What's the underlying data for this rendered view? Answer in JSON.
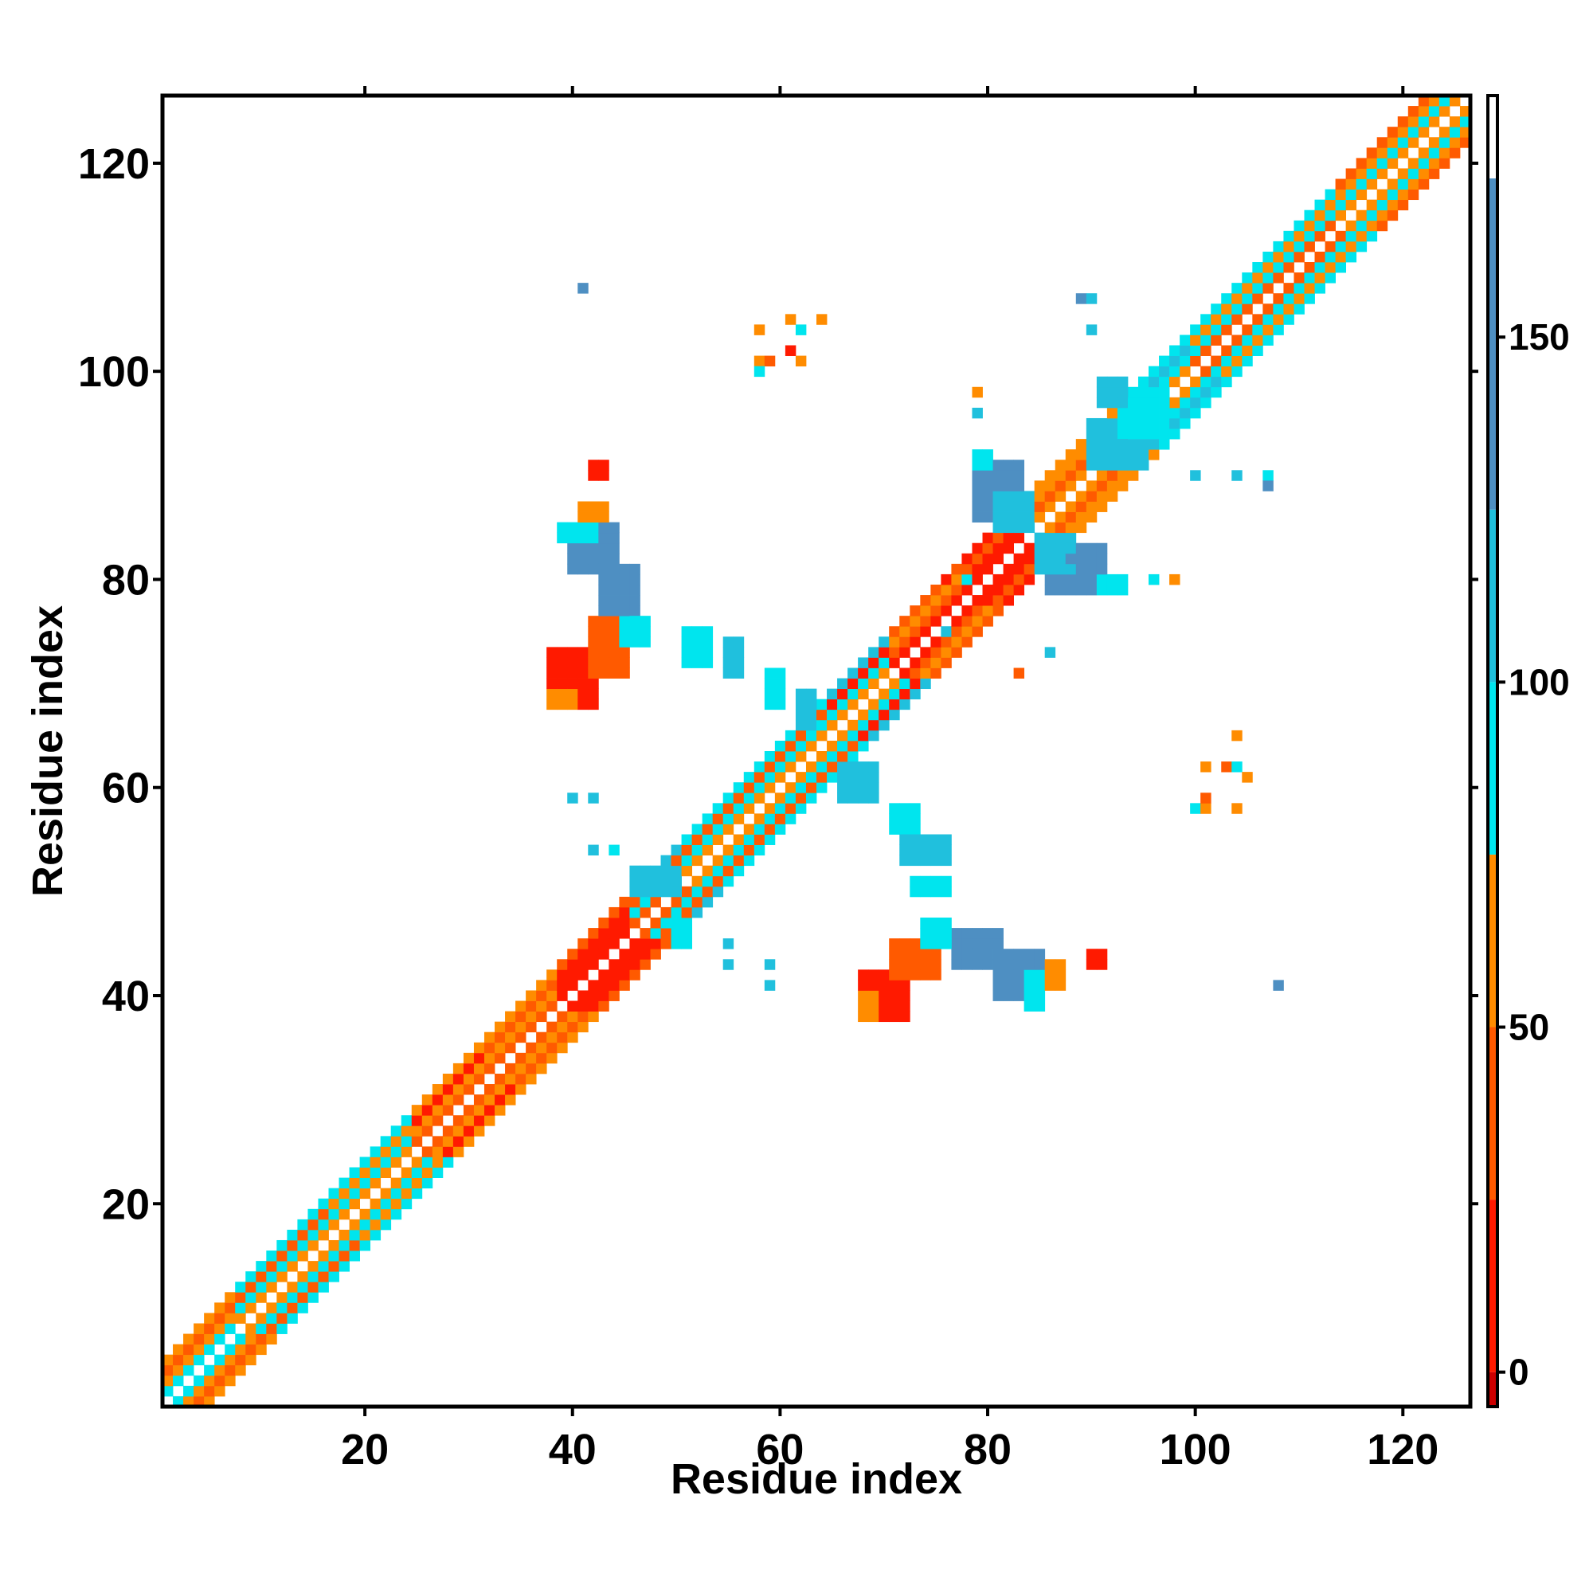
{
  "chart_data": {
    "type": "heatmap",
    "title": "",
    "xlabel": "Residue index",
    "ylabel": "Residue index",
    "xlim": [
      1,
      126
    ],
    "ylim": [
      1,
      126
    ],
    "xticks": [
      20,
      40,
      60,
      80,
      100,
      120
    ],
    "yticks": [
      20,
      40,
      60,
      80,
      100,
      120
    ],
    "grid": false,
    "colorbar": {
      "range": [
        -5,
        185
      ],
      "ticks": [
        0,
        50,
        100,
        150
      ],
      "bands": [
        {
          "from": -5,
          "to": 0,
          "color": "#cc0000"
        },
        {
          "from": 0,
          "to": 25,
          "color": "#ff1a00"
        },
        {
          "from": 25,
          "to": 50,
          "color": "#ff5a00"
        },
        {
          "from": 50,
          "to": 75,
          "color": "#ff8c00"
        },
        {
          "from": 75,
          "to": 100,
          "color": "#00e5ee"
        },
        {
          "from": 100,
          "to": 125,
          "color": "#20c0dd"
        },
        {
          "from": 125,
          "to": 173,
          "color": "#4e8fc2"
        },
        {
          "from": 173,
          "to": 185,
          "color": "#ffffff"
        }
      ]
    },
    "palette": {
      "1": "#ff1a00",
      "2": "#ff5a00",
      "3": "#ff8c00",
      "4": "#00e5ee",
      "5": "#20c0dd",
      "6": "#4e8fc2"
    },
    "palette_values": {
      "1": 10,
      "2": 40,
      "3": 62,
      "4": 88,
      "5": 112,
      "6": 150
    },
    "diagonal_bands": [
      {
        "from": 1,
        "to": 8,
        "pattern": [
          4,
          3,
          2,
          3
        ]
      },
      {
        "from": 8,
        "to": 17,
        "pattern": [
          3,
          4,
          2,
          4
        ]
      },
      {
        "from": 17,
        "to": 25,
        "pattern": [
          3,
          4,
          3,
          4
        ]
      },
      {
        "from": 25,
        "to": 32,
        "pattern": [
          2,
          3,
          1,
          3
        ]
      },
      {
        "from": 32,
        "to": 39,
        "pattern": [
          2,
          3,
          2,
          3
        ]
      },
      {
        "from": 39,
        "to": 46,
        "pattern": [
          1,
          1,
          1,
          2
        ]
      },
      {
        "from": 46,
        "to": 51,
        "pattern": [
          2,
          4,
          2,
          5
        ]
      },
      {
        "from": 51,
        "to": 65,
        "pattern": [
          3,
          4,
          2,
          4
        ]
      },
      {
        "from": 65,
        "to": 71,
        "pattern": [
          3,
          4,
          1,
          5
        ]
      },
      {
        "from": 71,
        "to": 78,
        "pattern": [
          1,
          2,
          3,
          2
        ]
      },
      {
        "from": 78,
        "to": 85,
        "pattern": [
          1,
          1,
          2,
          1
        ]
      },
      {
        "from": 85,
        "to": 93,
        "pattern": [
          3,
          2,
          3,
          3
        ]
      },
      {
        "from": 93,
        "to": 100,
        "pattern": [
          3,
          4,
          5,
          4
        ]
      },
      {
        "from": 100,
        "to": 114,
        "pattern": [
          2,
          4,
          3,
          4
        ]
      },
      {
        "from": 114,
        "to": 127,
        "pattern": [
          3,
          4,
          3,
          2
        ]
      }
    ],
    "patches": [
      {
        "x": [
          38,
          42
        ],
        "y": [
          68,
          73
        ],
        "color": 1
      },
      {
        "x": [
          42,
          45
        ],
        "y": [
          71,
          76
        ],
        "color": 2
      },
      {
        "x": [
          38,
          40
        ],
        "y": [
          68,
          69
        ],
        "color": 3
      },
      {
        "x": [
          40,
          44
        ],
        "y": [
          81,
          85
        ],
        "color": 6
      },
      {
        "x": [
          43,
          46
        ],
        "y": [
          77,
          81
        ],
        "color": 6
      },
      {
        "x": [
          39,
          42
        ],
        "y": [
          84,
          85
        ],
        "color": 4
      },
      {
        "x": [
          41,
          43
        ],
        "y": [
          86,
          87
        ],
        "color": 3
      },
      {
        "x": [
          42,
          43
        ],
        "y": [
          90,
          91
        ],
        "color": 1
      },
      {
        "x": [
          45,
          47
        ],
        "y": [
          74,
          76
        ],
        "color": 4
      },
      {
        "x": [
          68,
          72
        ],
        "y": [
          38,
          42
        ],
        "color": 1
      },
      {
        "x": [
          71,
          75
        ],
        "y": [
          42,
          45
        ],
        "color": 2
      },
      {
        "x": [
          68,
          69
        ],
        "y": [
          38,
          40
        ],
        "color": 3
      },
      {
        "x": [
          81,
          85
        ],
        "y": [
          40,
          44
        ],
        "color": 6
      },
      {
        "x": [
          77,
          81
        ],
        "y": [
          43,
          46
        ],
        "color": 6
      },
      {
        "x": [
          84,
          85
        ],
        "y": [
          39,
          42
        ],
        "color": 4
      },
      {
        "x": [
          86,
          87
        ],
        "y": [
          41,
          43
        ],
        "color": 3
      },
      {
        "x": [
          74,
          76
        ],
        "y": [
          45,
          47
        ],
        "color": 4
      },
      {
        "x": [
          90,
          91
        ],
        "y": [
          43,
          44
        ],
        "color": 1
      },
      {
        "x": [
          79,
          83
        ],
        "y": [
          86,
          91
        ],
        "color": 6
      },
      {
        "x": [
          81,
          84
        ],
        "y": [
          85,
          88
        ],
        "color": 5
      },
      {
        "x": [
          86,
          91
        ],
        "y": [
          79,
          83
        ],
        "color": 6
      },
      {
        "x": [
          85,
          88
        ],
        "y": [
          81,
          84
        ],
        "color": 5
      },
      {
        "x": [
          79,
          80
        ],
        "y": [
          91,
          92
        ],
        "color": 4
      },
      {
        "x": [
          91,
          93
        ],
        "y": [
          79,
          80
        ],
        "color": 4
      },
      {
        "x": [
          90,
          95
        ],
        "y": [
          91,
          95
        ],
        "color": 5
      },
      {
        "x": [
          93,
          97
        ],
        "y": [
          94,
          98
        ],
        "color": 4
      },
      {
        "x": [
          91,
          93
        ],
        "y": [
          97,
          99
        ],
        "color": 5
      },
      {
        "x": [
          51,
          53
        ],
        "y": [
          72,
          75
        ],
        "color": 4
      },
      {
        "x": [
          55,
          56
        ],
        "y": [
          71,
          74
        ],
        "color": 5
      },
      {
        "x": [
          59,
          60
        ],
        "y": [
          68,
          71
        ],
        "color": 4
      },
      {
        "x": [
          62,
          63
        ],
        "y": [
          66,
          69
        ],
        "color": 5
      },
      {
        "x": [
          66,
          69
        ],
        "y": [
          59,
          62
        ],
        "color": 5
      },
      {
        "x": [
          71,
          73
        ],
        "y": [
          56,
          58
        ],
        "color": 4
      },
      {
        "x": [
          72,
          76
        ],
        "y": [
          53,
          55
        ],
        "color": 5
      },
      {
        "x": [
          73,
          76
        ],
        "y": [
          50,
          51
        ],
        "color": 4
      },
      {
        "x": [
          46,
          50
        ],
        "y": [
          50,
          52
        ],
        "color": 5
      },
      {
        "x": [
          50,
          51
        ],
        "y": [
          45,
          47
        ],
        "color": 4
      }
    ],
    "cells": [
      [
        41,
        108,
        6
      ],
      [
        58,
        101,
        3
      ],
      [
        59,
        101,
        2
      ],
      [
        58,
        104,
        3
      ],
      [
        61,
        105,
        3
      ],
      [
        62,
        104,
        4
      ],
      [
        64,
        105,
        3
      ],
      [
        61,
        102,
        1
      ],
      [
        62,
        101,
        3
      ],
      [
        58,
        100,
        4
      ],
      [
        40,
        59,
        5
      ],
      [
        42,
        59,
        5
      ],
      [
        42,
        54,
        5
      ],
      [
        44,
        54,
        4
      ],
      [
        55,
        45,
        5
      ],
      [
        55,
        43,
        5
      ],
      [
        59,
        43,
        5
      ],
      [
        59,
        41,
        5
      ],
      [
        79,
        98,
        3
      ],
      [
        79,
        96,
        5
      ],
      [
        89,
        107,
        6
      ],
      [
        90,
        107,
        5
      ],
      [
        90,
        104,
        5
      ],
      [
        88,
        82,
        6
      ],
      [
        86,
        73,
        5
      ],
      [
        76,
        80,
        1
      ],
      [
        78,
        80,
        4
      ],
      [
        83,
        71,
        2
      ],
      [
        76,
        75,
        5
      ],
      [
        96,
        80,
        4
      ],
      [
        98,
        80,
        3
      ],
      [
        100,
        90,
        5
      ],
      [
        104,
        90,
        5
      ],
      [
        107,
        90,
        4
      ],
      [
        107,
        89,
        6
      ],
      [
        108,
        41,
        6
      ],
      [
        104,
        65,
        3
      ],
      [
        101,
        62,
        3
      ],
      [
        103,
        62,
        2
      ],
      [
        104,
        62,
        4
      ],
      [
        105,
        61,
        3
      ],
      [
        100,
        58,
        4
      ],
      [
        101,
        58,
        3
      ],
      [
        104,
        58,
        3
      ],
      [
        101,
        59,
        2
      ]
    ]
  }
}
